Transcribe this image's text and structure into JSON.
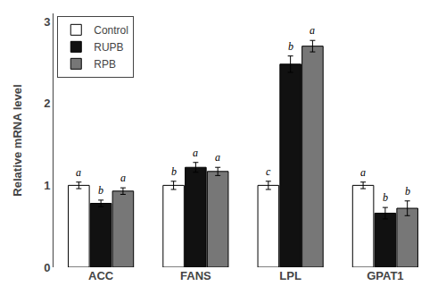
{
  "chart_data": {
    "type": "bar",
    "categories": [
      "ACC",
      "FANS",
      "LPL",
      "GPAT1"
    ],
    "series": [
      {
        "name": "Control",
        "color": "#ffffff",
        "values": [
          1.0,
          1.0,
          1.0,
          1.0
        ],
        "errors": [
          0.04,
          0.05,
          0.05,
          0.04
        ],
        "significance_labels": [
          "a",
          "b",
          "c",
          "a"
        ]
      },
      {
        "name": "RUPB",
        "color": "#111111",
        "values": [
          0.78,
          1.22,
          2.48,
          0.66
        ],
        "errors": [
          0.04,
          0.06,
          0.1,
          0.07
        ],
        "significance_labels": [
          "b",
          "a",
          "b",
          "b"
        ]
      },
      {
        "name": "RPB",
        "color": "#777777",
        "values": [
          0.93,
          1.17,
          2.7,
          0.72
        ],
        "errors": [
          0.04,
          0.05,
          0.07,
          0.09
        ],
        "significance_labels": [
          "a",
          "a",
          "a",
          "b"
        ]
      }
    ],
    "ylabel": "Relative mRNA level",
    "ylim": [
      0,
      3.1
    ],
    "yticks": [
      0,
      1,
      2,
      3
    ],
    "legend": "upper left",
    "grid": false
  }
}
